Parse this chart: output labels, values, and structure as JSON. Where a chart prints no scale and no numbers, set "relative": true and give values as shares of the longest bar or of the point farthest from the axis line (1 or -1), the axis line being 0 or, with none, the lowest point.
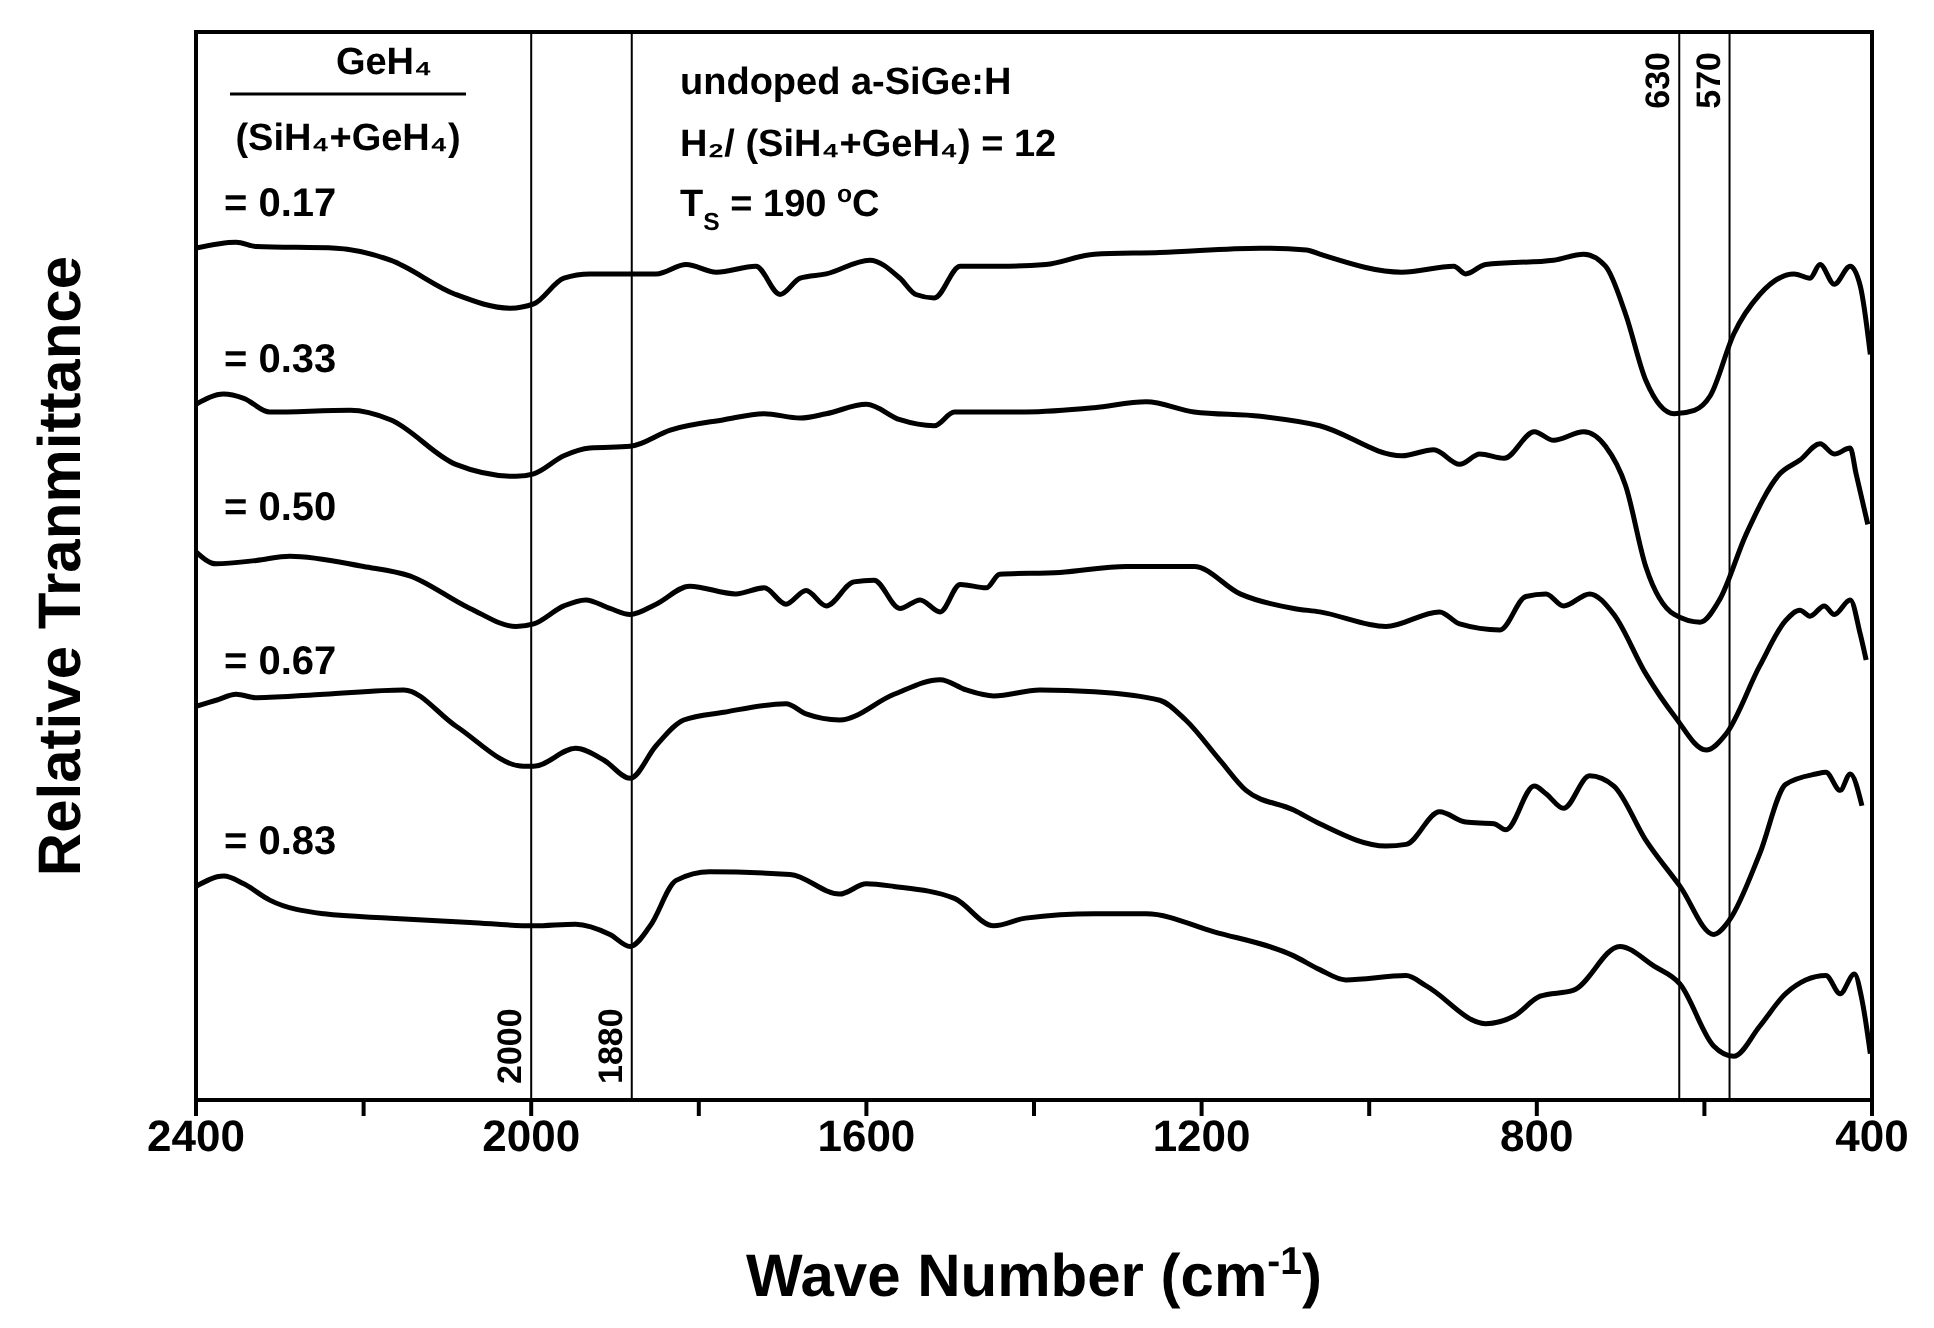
{
  "chart_data": {
    "type": "line",
    "relative": true,
    "xlabel": "Wave Number (cm$^{-1}$)",
    "ylabel": "Relative Tranmittance",
    "xlim": [
      2400,
      400
    ],
    "xticks": [
      2400,
      {
        "value": 2200,
        "label": null
      },
      2000,
      {
        "value": 1800,
        "label": null
      },
      1600,
      {
        "value": 1400,
        "label": null
      },
      1200,
      {
        "value": 1000,
        "label": null
      },
      800,
      {
        "value": 600,
        "label": null
      },
      400
    ],
    "marker": "none",
    "line_style": "solid",
    "annotations": [
      "GeH₄",
      "(SiH₄+GeH₄)",
      "undoped a-SiGe:H",
      "H₂/ (SiH₄+GeH₄) = 12",
      "T$_{S}$ = 190 $^{o}$C"
    ],
    "ref_lines": [
      {
        "axis": "x",
        "value": 2000,
        "label": "2000"
      },
      {
        "axis": "x",
        "value": 1880,
        "label": "1880"
      },
      {
        "axis": "x",
        "value": 630,
        "label": "630"
      },
      {
        "axis": "x",
        "value": 570,
        "label": "570"
      }
    ],
    "series": [
      {
        "name": "= 0.17",
        "color": "#000000",
        "x": [
          2400,
          2352,
          2328,
          2233,
          2168,
          2090,
          2025,
          1997,
          1961,
          1930,
          1882,
          1851,
          1815,
          1779,
          1732,
          1703,
          1679,
          1648,
          1596,
          1560,
          1541,
          1519,
          1488,
          1441,
          1386,
          1328,
          1250,
          1130,
          1075,
          1059,
          961,
          899,
          885,
          861,
          780,
          744,
          718,
          694,
          670,
          636,
          612,
          593,
          565,
          534,
          493,
          474,
          462,
          445,
          426,
          414,
          402
        ],
        "values": [
          0.993,
          1.0,
          0.995,
          0.993,
          0.979,
          0.939,
          0.923,
          0.928,
          0.958,
          0.963,
          0.963,
          0.963,
          0.974,
          0.965,
          0.972,
          0.939,
          0.958,
          0.963,
          0.979,
          0.958,
          0.939,
          0.935,
          0.972,
          0.972,
          0.974,
          0.986,
          0.988,
          0.993,
          0.991,
          0.986,
          0.965,
          0.972,
          0.963,
          0.974,
          0.979,
          0.986,
          0.972,
          0.916,
          0.839,
          0.8,
          0.804,
          0.821,
          0.893,
          0.939,
          0.963,
          0.958,
          0.974,
          0.951,
          0.972,
          0.949,
          0.869
        ]
      },
      {
        "name": "= 0.33",
        "color": "#000000",
        "x": [
          2400,
          2367,
          2343,
          2312,
          2216,
          2168,
          2090,
          2018,
          1997,
          1961,
          1930,
          1882,
          1834,
          1770,
          1722,
          1679,
          1648,
          1600,
          1560,
          1519,
          1495,
          1410,
          1328,
          1266,
          1209,
          1130,
          1059,
          961,
          923,
          892,
          868,
          839,
          803,
          780,
          744,
          718,
          694,
          670,
          636,
          605,
          582,
          550,
          510,
          486,
          462,
          445,
          426,
          419,
          405
        ],
        "values": [
          0.811,
          0.823,
          0.818,
          0.802,
          0.804,
          0.793,
          0.741,
          0.727,
          0.73,
          0.751,
          0.76,
          0.762,
          0.781,
          0.793,
          0.8,
          0.795,
          0.8,
          0.811,
          0.793,
          0.786,
          0.802,
          0.802,
          0.807,
          0.814,
          0.802,
          0.797,
          0.786,
          0.751,
          0.758,
          0.741,
          0.753,
          0.748,
          0.779,
          0.769,
          0.779,
          0.762,
          0.716,
          0.622,
          0.566,
          0.557,
          0.583,
          0.66,
          0.73,
          0.746,
          0.765,
          0.753,
          0.76,
          0.73,
          0.671
        ]
      },
      {
        "name": "= 0.50",
        "color": "#000000",
        "x": [
          2400,
          2376,
          2328,
          2288,
          2200,
          2145,
          2073,
          2018,
          1997,
          1961,
          1935,
          1906,
          1882,
          1851,
          1811,
          1756,
          1722,
          1696,
          1672,
          1648,
          1615,
          1591,
          1560,
          1536,
          1512,
          1488,
          1457,
          1441,
          1369,
          1290,
          1209,
          1154,
          1090,
          1059,
          980,
          916,
          892,
          844,
          813,
          789,
          768,
          737,
          708,
          670,
          636,
          598,
          574,
          534,
          503,
          486,
          474,
          457,
          445,
          426,
          414,
          407
        ],
        "values": [
          0.639,
          0.625,
          0.629,
          0.634,
          0.622,
          0.611,
          0.573,
          0.552,
          0.555,
          0.576,
          0.583,
          0.573,
          0.566,
          0.578,
          0.599,
          0.59,
          0.597,
          0.578,
          0.594,
          0.576,
          0.604,
          0.606,
          0.573,
          0.583,
          0.569,
          0.601,
          0.597,
          0.613,
          0.615,
          0.622,
          0.622,
          0.59,
          0.573,
          0.569,
          0.552,
          0.569,
          0.555,
          0.548,
          0.587,
          0.59,
          0.576,
          0.59,
          0.566,
          0.497,
          0.448,
          0.408,
          0.427,
          0.506,
          0.559,
          0.571,
          0.564,
          0.576,
          0.566,
          0.583,
          0.543,
          0.513
        ]
      },
      {
        "name": "= 0.67",
        "color": "#000000",
        "x": [
          2400,
          2376,
          2352,
          2328,
          2247,
          2152,
          2090,
          2009,
          1997,
          1947,
          1913,
          1882,
          1851,
          1818,
          1770,
          1696,
          1672,
          1632,
          1567,
          1512,
          1481,
          1448,
          1393,
          1328,
          1250,
          1219,
          1178,
          1147,
          1090,
          1059,
          980,
          956,
          916,
          885,
          851,
          837,
          803,
          789,
          768,
          737,
          708,
          670,
          629,
          589,
          570,
          534,
          503,
          467,
          455,
          438,
          426,
          412
        ],
        "values": [
          0.459,
          0.466,
          0.473,
          0.469,
          0.473,
          0.478,
          0.436,
          0.389,
          0.389,
          0.41,
          0.396,
          0.375,
          0.413,
          0.443,
          0.452,
          0.462,
          0.45,
          0.443,
          0.473,
          0.49,
          0.478,
          0.471,
          0.478,
          0.476,
          0.466,
          0.443,
          0.396,
          0.361,
          0.338,
          0.322,
          0.296,
          0.298,
          0.336,
          0.324,
          0.322,
          0.315,
          0.366,
          0.357,
          0.34,
          0.378,
          0.366,
          0.303,
          0.249,
          0.193,
          0.21,
          0.287,
          0.368,
          0.38,
          0.382,
          0.361,
          0.38,
          0.343
        ]
      },
      {
        "name": "= 0.83",
        "color": "#000000",
        "x": [
          2400,
          2367,
          2343,
          2312,
          2247,
          2168,
          2073,
          1997,
          1947,
          1906,
          1882,
          1858,
          1827,
          1787,
          1691,
          1632,
          1600,
          1567,
          1495,
          1448,
          1410,
          1328,
          1266,
          1185,
          1090,
          1059,
          1028,
          956,
          932,
          861,
          827,
          796,
          756,
          701,
          660,
          629,
          589,
          565,
          534,
          503,
          455,
          438,
          421,
          412,
          402
        ],
        "values": [
          0.249,
          0.261,
          0.252,
          0.233,
          0.217,
          0.212,
          0.207,
          0.203,
          0.205,
          0.193,
          0.179,
          0.203,
          0.256,
          0.266,
          0.263,
          0.24,
          0.252,
          0.249,
          0.235,
          0.203,
          0.212,
          0.217,
          0.217,
          0.196,
          0.168,
          0.152,
          0.14,
          0.145,
          0.133,
          0.089,
          0.098,
          0.121,
          0.128,
          0.179,
          0.156,
          0.135,
          0.063,
          0.051,
          0.086,
          0.124,
          0.145,
          0.124,
          0.147,
          0.117,
          0.054
        ]
      }
    ]
  }
}
